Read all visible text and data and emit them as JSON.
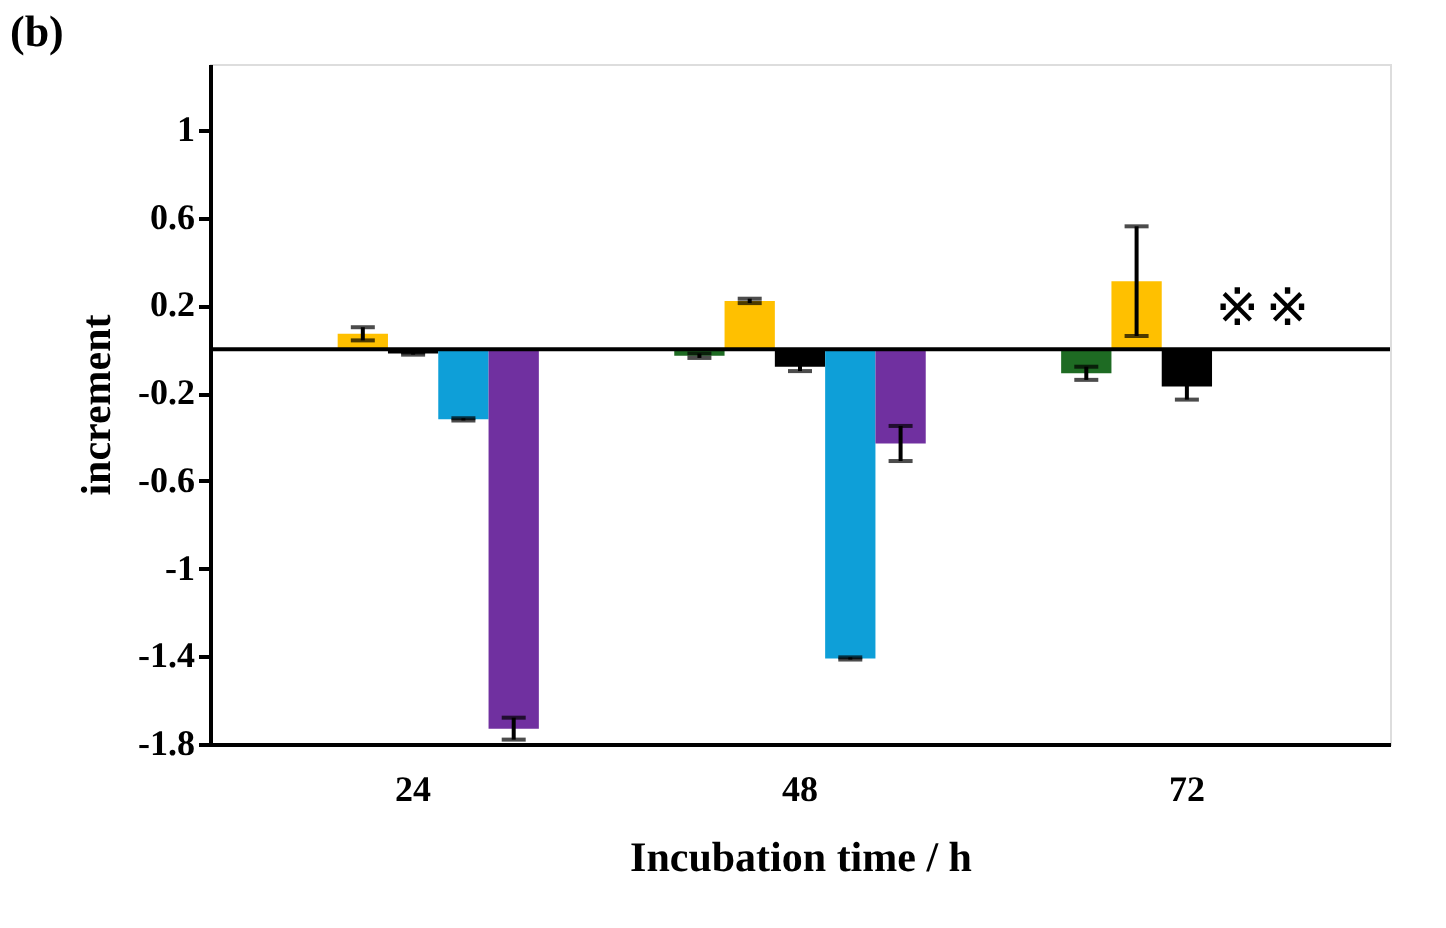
{
  "chart_data": {
    "type": "bar",
    "title": "(b)",
    "xlabel": "Incubation time / h",
    "ylabel": "increment",
    "categories": [
      "24",
      "48",
      "72"
    ],
    "series": [
      {
        "color": "#1e6b23",
        "values": [
          null,
          -0.03,
          -0.11
        ],
        "errors": [
          null,
          0.01,
          0.03
        ]
      },
      {
        "color": "#ffc000",
        "values": [
          0.07,
          0.22,
          0.31
        ],
        "errors": [
          0.03,
          0.01,
          0.25
        ]
      },
      {
        "color": "#000000",
        "values": [
          -0.02,
          -0.08,
          -0.17
        ],
        "errors": [
          0.005,
          0.02,
          0.06
        ]
      },
      {
        "color": "#0e9fd8",
        "values": [
          -0.32,
          -1.41,
          null
        ],
        "errors": [
          0.005,
          0.005,
          null
        ]
      },
      {
        "color": "#7030a0",
        "values": [
          -1.73,
          -0.43,
          null
        ],
        "errors": [
          0.05,
          0.08,
          null
        ]
      }
    ],
    "ylim": [
      -1.8,
      1.3
    ],
    "yticks": [
      -1.8,
      -1.4,
      -1,
      -0.6,
      -0.2,
      0.2,
      0.6,
      1
    ],
    "ref_lines": [
      {
        "axis": "y",
        "value": 0,
        "color": "#000000"
      }
    ],
    "annotations": [
      "※",
      "※"
    ],
    "grid": false,
    "legend": false
  }
}
